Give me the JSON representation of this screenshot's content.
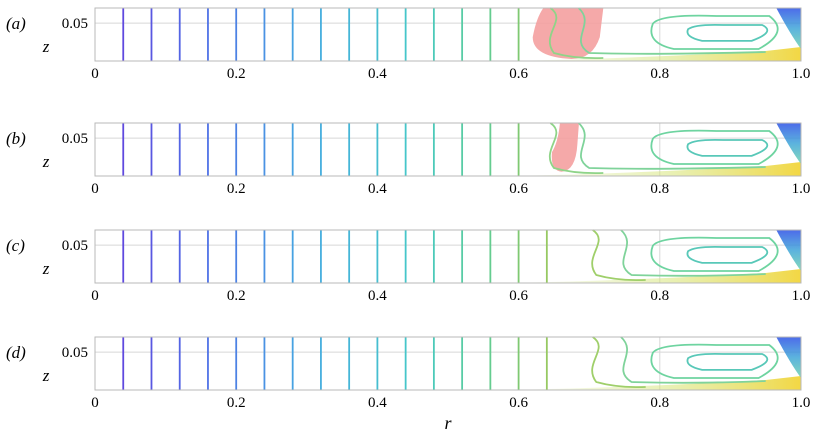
{
  "chart_data": [
    {
      "type": "contour",
      "panel_label": "(a)",
      "xlabel": "",
      "ylabel": "z",
      "xlim": [
        0,
        1.0
      ],
      "ylim": [
        0,
        0.07
      ],
      "x_ticks": [
        "0",
        "0.2",
        "0.4",
        "0.6",
        "0.8",
        "1.0"
      ],
      "y_ticks": [
        "0.05"
      ],
      "vertical_contour_r": [
        0.04,
        0.08,
        0.12,
        0.16,
        0.2,
        0.24,
        0.28,
        0.32,
        0.36,
        0.4,
        0.44,
        0.48,
        0.52,
        0.56,
        0.6
      ],
      "highlight_region": {
        "r_min": 0.62,
        "r_max": 0.72,
        "color": "#f4a0a0"
      }
    },
    {
      "type": "contour",
      "panel_label": "(b)",
      "xlabel": "",
      "ylabel": "z",
      "xlim": [
        0,
        1.0
      ],
      "ylim": [
        0,
        0.07
      ],
      "x_ticks": [
        "0",
        "0.2",
        "0.4",
        "0.6",
        "0.8",
        "1.0"
      ],
      "y_ticks": [
        "0.05"
      ],
      "vertical_contour_r": [
        0.04,
        0.08,
        0.12,
        0.16,
        0.2,
        0.24,
        0.28,
        0.32,
        0.36,
        0.4,
        0.44,
        0.48,
        0.52,
        0.56,
        0.6
      ],
      "highlight_region": {
        "r_min": 0.645,
        "r_max": 0.69,
        "color": "#f4a0a0"
      }
    },
    {
      "type": "contour",
      "panel_label": "(c)",
      "xlabel": "",
      "ylabel": "z",
      "xlim": [
        0,
        1.0
      ],
      "ylim": [
        0,
        0.07
      ],
      "x_ticks": [
        "0",
        "0.2",
        "0.4",
        "0.6",
        "0.8",
        "1.0"
      ],
      "y_ticks": [
        "0.05"
      ],
      "vertical_contour_r": [
        0.04,
        0.08,
        0.12,
        0.16,
        0.2,
        0.24,
        0.28,
        0.32,
        0.36,
        0.4,
        0.44,
        0.48,
        0.52,
        0.56,
        0.6,
        0.64
      ]
    },
    {
      "type": "contour",
      "panel_label": "(d)",
      "xlabel": "r",
      "ylabel": "z",
      "xlim": [
        0,
        1.0
      ],
      "ylim": [
        0,
        0.07
      ],
      "x_ticks": [
        "0",
        "0.2",
        "0.4",
        "0.6",
        "0.8",
        "1.0"
      ],
      "y_ticks": [
        "0.05"
      ],
      "vertical_contour_r": [
        0.04,
        0.08,
        0.12,
        0.16,
        0.2,
        0.24,
        0.28,
        0.32,
        0.36,
        0.4,
        0.44,
        0.48,
        0.52,
        0.56,
        0.6,
        0.64
      ]
    }
  ]
}
